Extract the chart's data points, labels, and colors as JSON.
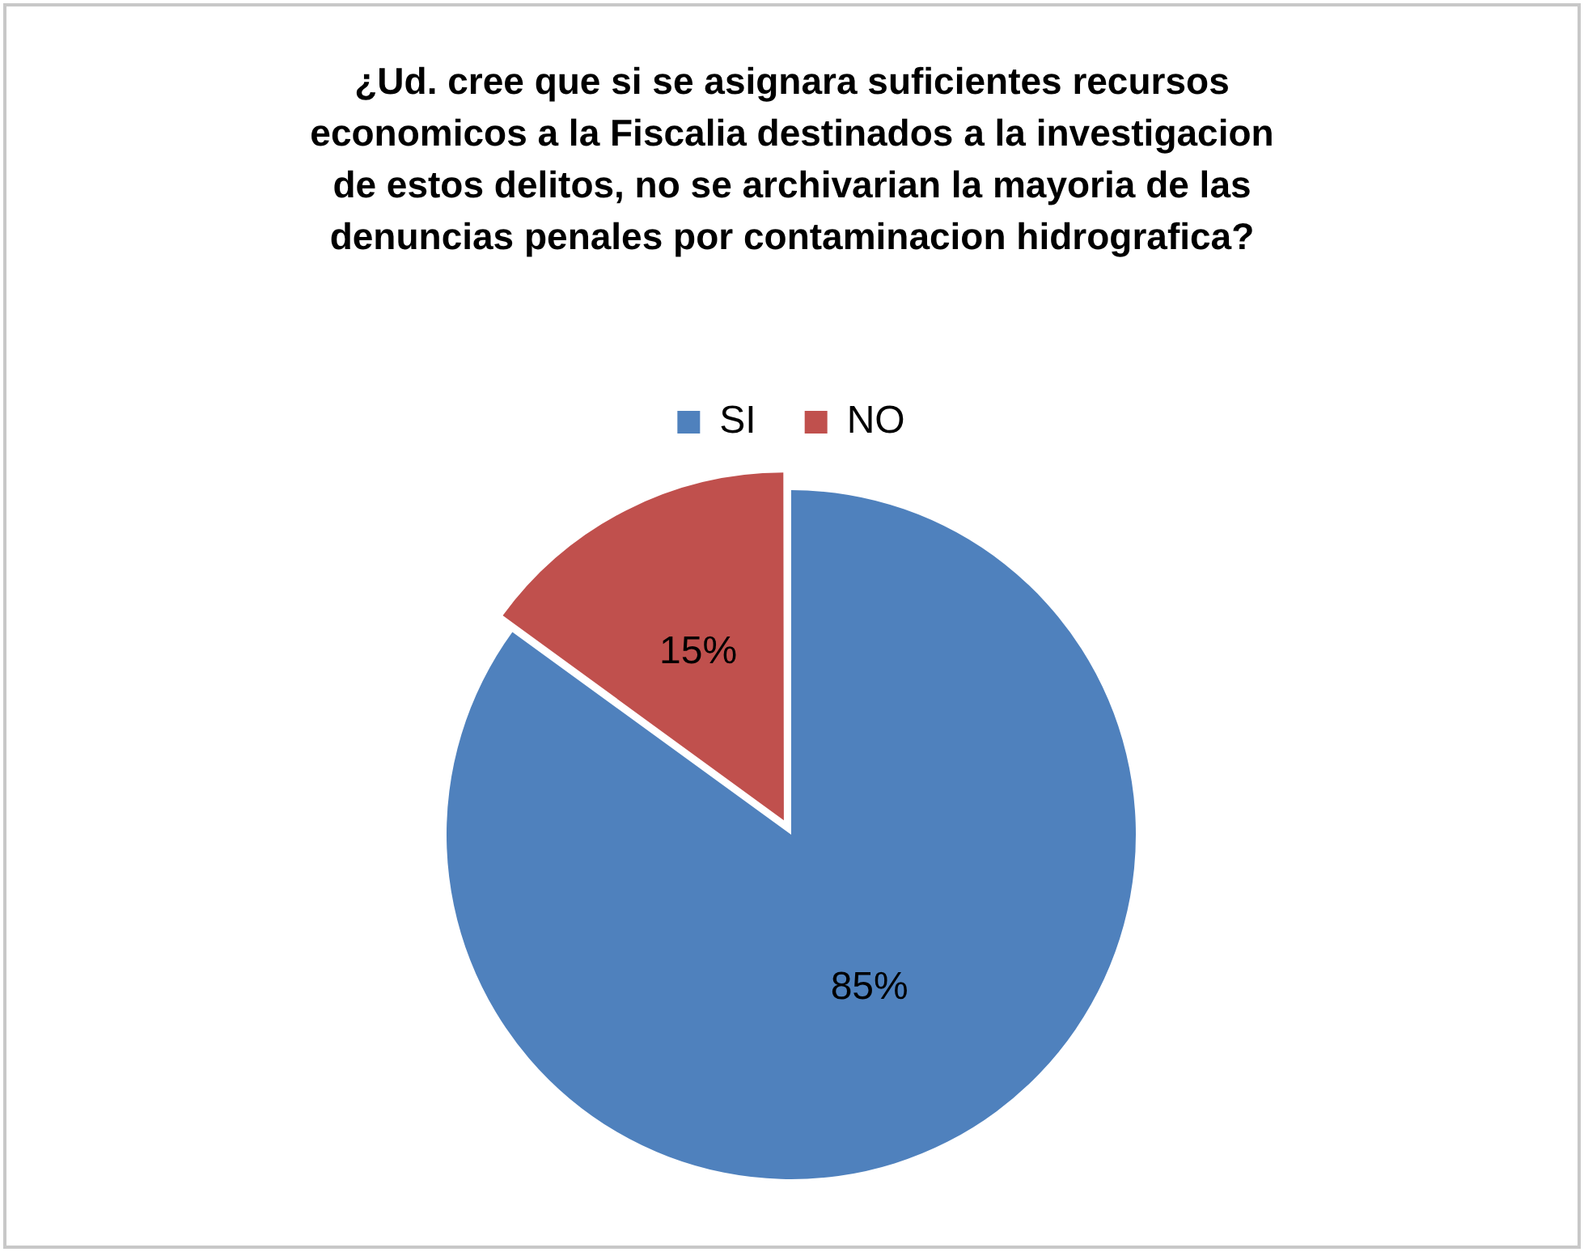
{
  "chart_data": {
    "type": "pie",
    "title": "¿Ud. cree que si se asignara suficientes recursos economicos a la Fiscalia destinados a la investigacion de estos delitos, no se archivarian la mayoria de las denuncias penales por contaminacion hidrografica?",
    "categories": [
      "SI",
      "NO"
    ],
    "values": [
      85,
      15
    ],
    "colors": [
      "#4f81bd",
      "#c0504d"
    ],
    "legend": "top",
    "value_labels": [
      "85%",
      "15%"
    ]
  }
}
